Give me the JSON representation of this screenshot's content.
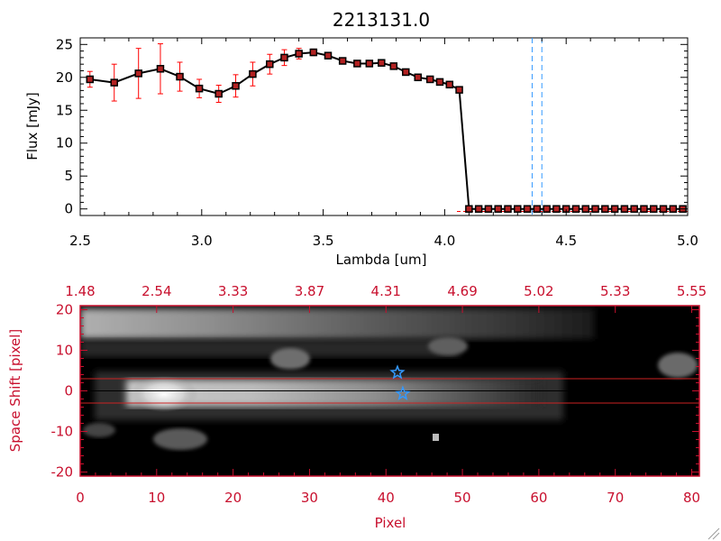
{
  "chart_data": [
    {
      "type": "line",
      "title": "2213131.0",
      "xlabel": "Lambda [um]",
      "ylabel": "Flux [mJy]",
      "xlim": [
        2.5,
        5.0
      ],
      "ylim": [
        -1,
        26
      ],
      "x_ticks": [
        "2.5",
        "3.0",
        "3.5",
        "4.0",
        "4.5",
        "5.0"
      ],
      "y_ticks": [
        "0",
        "5",
        "10",
        "15",
        "20",
        "25"
      ],
      "grid": false,
      "line_color": "#000000",
      "marker_color": "#b22222",
      "errorbar_color": "#ff0000",
      "dashed_markers_color": "#3399ff",
      "dashed_vlines_x": [
        4.36,
        4.4
      ],
      "series": [
        {
          "x": [
            2.54,
            2.64,
            2.74,
            2.83,
            2.91,
            2.99,
            3.07,
            3.14,
            3.21,
            3.28,
            3.34,
            3.4,
            3.46,
            3.52,
            3.58,
            3.64,
            3.69,
            3.74,
            3.79,
            3.84,
            3.89,
            3.94,
            3.98,
            4.02,
            4.06,
            4.1,
            4.14,
            4.18,
            4.22,
            4.26,
            4.3,
            4.34,
            4.38,
            4.42,
            4.46,
            4.5,
            4.54,
            4.58,
            4.62,
            4.66,
            4.7,
            4.74,
            4.78,
            4.82,
            4.86,
            4.9,
            4.94,
            4.98
          ],
          "y": [
            19.7,
            19.2,
            20.6,
            21.3,
            20.1,
            18.3,
            17.5,
            18.7,
            20.5,
            22.0,
            23.0,
            23.6,
            23.8,
            23.3,
            22.5,
            22.1,
            22.1,
            22.2,
            21.7,
            20.8,
            20.0,
            19.7,
            19.3,
            18.9,
            18.1,
            0,
            0,
            0,
            0,
            0,
            0,
            0,
            0,
            0,
            0,
            0,
            0,
            0,
            0,
            0,
            0,
            0,
            0,
            0,
            0,
            0,
            0,
            0
          ],
          "yerr": [
            1.2,
            2.8,
            3.8,
            3.8,
            2.2,
            1.4,
            1.3,
            1.7,
            1.8,
            1.5,
            1.2,
            0.8,
            0.5,
            0.4,
            0.4,
            0.3,
            0.3,
            0.3,
            0.3,
            0.3,
            0.3,
            0.3,
            0.3,
            0.3,
            0.3,
            0,
            0,
            0,
            0,
            0,
            0,
            0,
            0,
            0,
            0,
            0,
            0,
            0,
            0,
            0,
            0,
            0,
            0,
            0,
            0,
            0,
            0,
            0
          ]
        }
      ]
    },
    {
      "type": "heatmap",
      "xlabel": "Pixel",
      "ylabel": "Space Shift [pixel]",
      "xlim": [
        0,
        81
      ],
      "ylim": [
        -21,
        21
      ],
      "x_ticks": [
        "0",
        "10",
        "20",
        "30",
        "40",
        "50",
        "60",
        "70",
        "80"
      ],
      "y_ticks": [
        "-20",
        "-10",
        "0",
        "10",
        "20"
      ],
      "top_ticks": [
        "1.48",
        "2.54",
        "3.33",
        "3.87",
        "4.31",
        "4.69",
        "5.02",
        "5.33",
        "5.55"
      ],
      "axis_color": "#c8102e",
      "aperture_lines_y": [
        3,
        -3
      ],
      "aperture_line_color": "#cc2222",
      "center_line_y": 0,
      "stars": [
        {
          "x": 41.5,
          "y": 4.5
        },
        {
          "x": 42.2,
          "y": -0.7
        }
      ],
      "star_color": "#3399ff"
    }
  ]
}
